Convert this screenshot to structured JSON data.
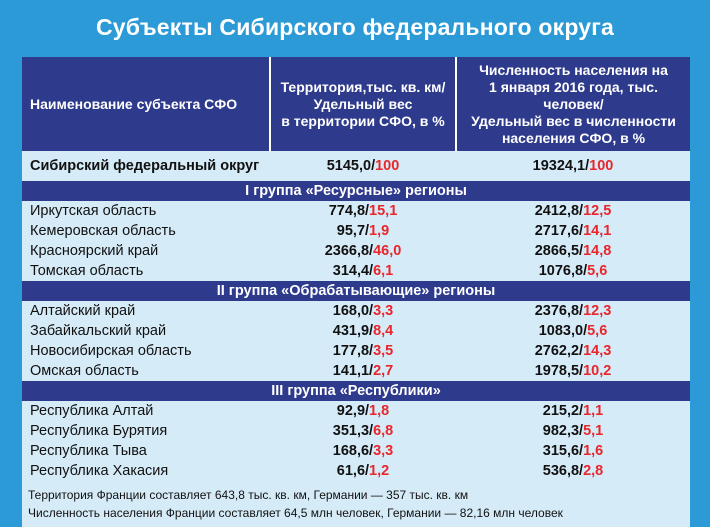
{
  "title": "Субъекты Сибирского федерального округа",
  "header": {
    "col1": "Наименование субъекта СФО",
    "col2": [
      "Территория,тыс. кв. км/",
      "Удельный вес",
      "в территории СФО, в %"
    ],
    "col3": [
      "Численность населения на",
      "1 января 2016 года, тыс. человек/",
      "Удельный вес в численности",
      "населения СФО, в %"
    ]
  },
  "total": {
    "name": "Сибирский федеральный округ",
    "terr": "5145,0",
    "terr_pct": "100",
    "pop": "19324,1",
    "pop_pct": "100"
  },
  "groups": [
    {
      "label": "I группа «Ресурсные» регионы",
      "rows": [
        {
          "name": "Иркутская область",
          "terr": "774,8",
          "terr_pct": "15,1",
          "pop": "2412,8",
          "pop_pct": "12,5"
        },
        {
          "name": "Кемеровская область",
          "terr": "95,7",
          "terr_pct": "1,9",
          "pop": "2717,6",
          "pop_pct": "14,1"
        },
        {
          "name": "Красноярский край",
          "terr": "2366,8",
          "terr_pct": "46,0",
          "pop": "2866,5",
          "pop_pct": "14,8"
        },
        {
          "name": "Томская область",
          "terr": "314,4",
          "terr_pct": "6,1",
          "pop": "1076,8",
          "pop_pct": "5,6"
        }
      ]
    },
    {
      "label": "II группа «Обрабатывающие» регионы",
      "rows": [
        {
          "name": "Алтайский край",
          "terr": "168,0",
          "terr_pct": "3,3",
          "pop": "2376,8",
          "pop_pct": "12,3"
        },
        {
          "name": "Забайкальский край",
          "terr": "431,9",
          "terr_pct": "8,4",
          "pop": "1083,0",
          "pop_pct": "5,6"
        },
        {
          "name": "Новосибирская область",
          "terr": "177,8",
          "terr_pct": "3,5",
          "pop": "2762,2",
          "pop_pct": "14,3"
        },
        {
          "name": "Омская область",
          "terr": "141,1",
          "terr_pct": "2,7",
          "pop": "1978,5",
          "pop_pct": "10,2"
        }
      ]
    },
    {
      "label": "III группа «Республики»",
      "rows": [
        {
          "name": "Республика Алтай",
          "terr": "92,9",
          "terr_pct": "1,8",
          "pop": "215,2",
          "pop_pct": "1,1"
        },
        {
          "name": "Республика Бурятия",
          "terr": "351,3",
          "terr_pct": "6,8",
          "pop": "982,3",
          "pop_pct": "5,1"
        },
        {
          "name": "Республика Тыва",
          "terr": "168,6",
          "terr_pct": "3,3",
          "pop": "315,6",
          "pop_pct": "1,6"
        },
        {
          "name": "Республика Хакасия",
          "terr": "61,6",
          "terr_pct": "1,2",
          "pop": "536,8",
          "pop_pct": "2,8"
        }
      ]
    }
  ],
  "footnotes": [
    "Территория Франции составляет 643,8 тыс. кв. км, Германии — 357 тыс. кв. км",
    "Численность населения Франции составляет 64,5 млн человек, Германии — 82,16 млн человек"
  ]
}
